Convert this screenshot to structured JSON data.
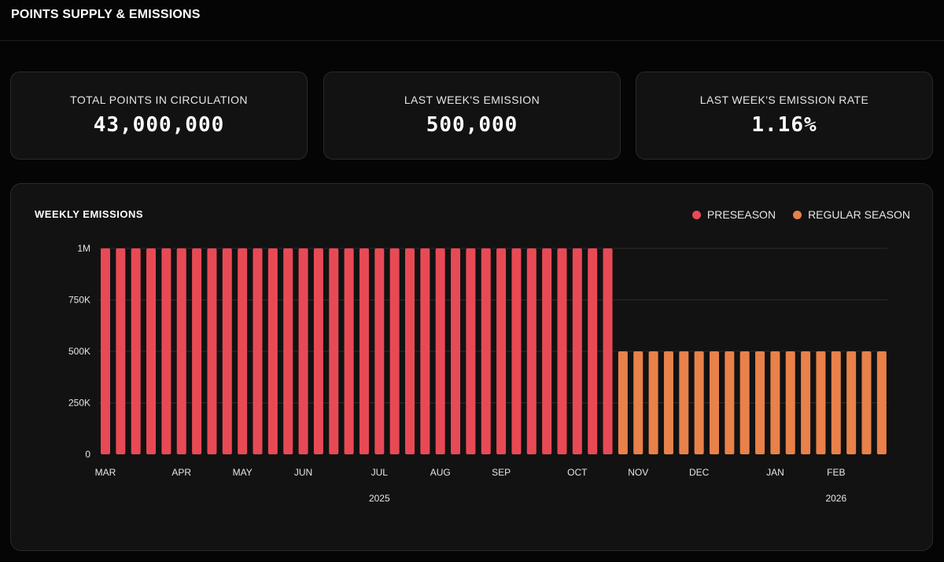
{
  "header": {
    "title": "POINTS SUPPLY & EMISSIONS"
  },
  "stats": [
    {
      "label": "TOTAL POINTS IN CIRCULATION",
      "value": "43,000,000"
    },
    {
      "label": "LAST WEEK'S EMISSION",
      "value": "500,000"
    },
    {
      "label": "LAST WEEK'S EMISSION RATE",
      "value": "1.16%"
    }
  ],
  "chart": {
    "title": "WEEKLY EMISSIONS"
  },
  "chart_data": {
    "type": "bar",
    "title": "WEEKLY EMISSIONS",
    "xlabel": "",
    "ylabel": "",
    "ylim": [
      0,
      1000000
    ],
    "grid": true,
    "legend_position": "top-right",
    "y_ticks": [
      "0",
      "250K",
      "500K",
      "750K",
      "1M"
    ],
    "y_tick_values": [
      0,
      250000,
      500000,
      750000,
      1000000
    ],
    "month_labels": [
      {
        "label": "MAR",
        "week": 0
      },
      {
        "label": "APR",
        "week": 5
      },
      {
        "label": "MAY",
        "week": 9
      },
      {
        "label": "JUN",
        "week": 13
      },
      {
        "label": "JUL",
        "week": 18
      },
      {
        "label": "AUG",
        "week": 22
      },
      {
        "label": "SEP",
        "week": 26
      },
      {
        "label": "OCT",
        "week": 31
      },
      {
        "label": "NOV",
        "week": 35
      },
      {
        "label": "DEC",
        "week": 39
      },
      {
        "label": "JAN",
        "week": 44
      },
      {
        "label": "FEB",
        "week": 48
      }
    ],
    "year_labels": [
      {
        "label": "2025",
        "week": 18
      },
      {
        "label": "2026",
        "week": 48
      }
    ],
    "series": [
      {
        "name": "PRESEASON",
        "color": "#e84a55",
        "values": [
          1000000,
          1000000,
          1000000,
          1000000,
          1000000,
          1000000,
          1000000,
          1000000,
          1000000,
          1000000,
          1000000,
          1000000,
          1000000,
          1000000,
          1000000,
          1000000,
          1000000,
          1000000,
          1000000,
          1000000,
          1000000,
          1000000,
          1000000,
          1000000,
          1000000,
          1000000,
          1000000,
          1000000,
          1000000,
          1000000,
          1000000,
          1000000,
          1000000,
          1000000
        ]
      },
      {
        "name": "REGULAR SEASON",
        "color": "#e8814a",
        "values": [
          500000,
          500000,
          500000,
          500000,
          500000,
          500000,
          500000,
          500000,
          500000,
          500000,
          500000,
          500000,
          500000,
          500000,
          500000,
          500000,
          500000,
          500000
        ]
      }
    ]
  }
}
